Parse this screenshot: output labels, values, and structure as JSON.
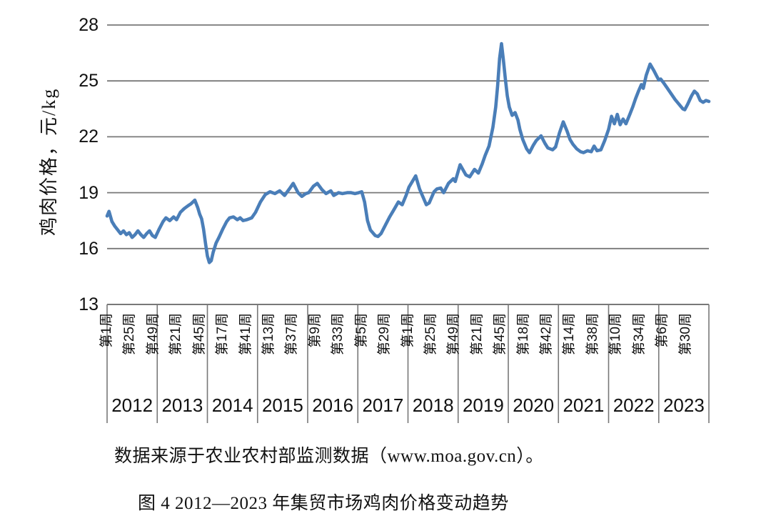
{
  "figure": {
    "source_note": "数据来源于农业农村部监测数据（www.moa.gov.cn）。",
    "caption": "图 4 2012—2023 年集贸市场鸡肉价格变动趋势"
  },
  "chart_data": {
    "type": "line",
    "title": "图 4 2012—2023 年集贸市场鸡肉价格变动趋势",
    "source_note": "数据来源于农业农村部监测数据（www.moa.gov.cn）。",
    "ylabel": "鸡肉价格，元/kg",
    "y_unit": "元/kg",
    "ylim": [
      13,
      28
    ],
    "y_ticks": [
      28,
      25,
      22,
      19,
      16,
      13
    ],
    "grid": "horizontal-only",
    "legend": "none",
    "line_color": "#4a7eb8",
    "grid_color": "#787878",
    "x_years": [
      "2012",
      "2013",
      "2014",
      "2015",
      "2016",
      "2017",
      "2018",
      "2019",
      "2020",
      "2021",
      "2022",
      "2023"
    ],
    "weeks_per_year": 52,
    "total_weeks": 624,
    "x_tick_interval_weeks": 24,
    "x_tick_week_labels": [
      "第1周",
      "第25周",
      "第49周",
      "第21周",
      "第45周",
      "第17周",
      "第41周",
      "第13周",
      "第37周",
      "第9周",
      "第33周",
      "第5周",
      "第29周",
      "第1周",
      "第25周",
      "第49周",
      "第21周",
      "第45周",
      "第18周",
      "第42周",
      "第14周",
      "第38周",
      "第10周",
      "第34周",
      "第6周",
      "第30周"
    ],
    "series": [
      {
        "unit": "元/kg",
        "points_week_value": [
          [
            0,
            17.75
          ],
          [
            2,
            18.0
          ],
          [
            5,
            17.45
          ],
          [
            8,
            17.2
          ],
          [
            11,
            17.0
          ],
          [
            14,
            16.8
          ],
          [
            17,
            16.95
          ],
          [
            20,
            16.75
          ],
          [
            23,
            16.85
          ],
          [
            26,
            16.6
          ],
          [
            29,
            16.75
          ],
          [
            32,
            16.95
          ],
          [
            35,
            16.75
          ],
          [
            38,
            16.6
          ],
          [
            41,
            16.8
          ],
          [
            44,
            16.95
          ],
          [
            47,
            16.7
          ],
          [
            50,
            16.6
          ],
          [
            54,
            17.05
          ],
          [
            58,
            17.45
          ],
          [
            61,
            17.65
          ],
          [
            65,
            17.5
          ],
          [
            69,
            17.7
          ],
          [
            72,
            17.55
          ],
          [
            76,
            17.95
          ],
          [
            80,
            18.15
          ],
          [
            84,
            18.3
          ],
          [
            87,
            18.4
          ],
          [
            91,
            18.6
          ],
          [
            94,
            18.2
          ],
          [
            96,
            17.85
          ],
          [
            98,
            17.6
          ],
          [
            100,
            17.05
          ],
          [
            102,
            16.3
          ],
          [
            104,
            15.6
          ],
          [
            106,
            15.25
          ],
          [
            108,
            15.35
          ],
          [
            110,
            15.8
          ],
          [
            113,
            16.3
          ],
          [
            116,
            16.6
          ],
          [
            120,
            17.05
          ],
          [
            124,
            17.45
          ],
          [
            127,
            17.65
          ],
          [
            131,
            17.7
          ],
          [
            135,
            17.55
          ],
          [
            138,
            17.65
          ],
          [
            141,
            17.5
          ],
          [
            145,
            17.55
          ],
          [
            150,
            17.65
          ],
          [
            154,
            17.95
          ],
          [
            159,
            18.5
          ],
          [
            164,
            18.9
          ],
          [
            169,
            19.05
          ],
          [
            174,
            18.95
          ],
          [
            179,
            19.1
          ],
          [
            184,
            18.85
          ],
          [
            189,
            19.2
          ],
          [
            193,
            19.5
          ],
          [
            198,
            19.0
          ],
          [
            202,
            18.8
          ],
          [
            206,
            18.95
          ],
          [
            209,
            19.0
          ],
          [
            214,
            19.35
          ],
          [
            218,
            19.5
          ],
          [
            223,
            19.15
          ],
          [
            227,
            18.95
          ],
          [
            232,
            19.1
          ],
          [
            235,
            18.85
          ],
          [
            240,
            19.0
          ],
          [
            244,
            18.95
          ],
          [
            249,
            19.0
          ],
          [
            253,
            19.0
          ],
          [
            257,
            18.95
          ],
          [
            261,
            19.0
          ],
          [
            264,
            19.05
          ],
          [
            267,
            18.5
          ],
          [
            270,
            17.5
          ],
          [
            273,
            17.0
          ],
          [
            278,
            16.7
          ],
          [
            281,
            16.65
          ],
          [
            284,
            16.8
          ],
          [
            289,
            17.3
          ],
          [
            293,
            17.7
          ],
          [
            297,
            18.05
          ],
          [
            302,
            18.5
          ],
          [
            306,
            18.35
          ],
          [
            310,
            18.85
          ],
          [
            313,
            19.3
          ],
          [
            320,
            19.9
          ],
          [
            324,
            19.2
          ],
          [
            331,
            18.35
          ],
          [
            334,
            18.45
          ],
          [
            339,
            19.05
          ],
          [
            342,
            19.2
          ],
          [
            346,
            19.25
          ],
          [
            349,
            19.0
          ],
          [
            354,
            19.5
          ],
          [
            359,
            19.75
          ],
          [
            361,
            19.6
          ],
          [
            366,
            20.5
          ],
          [
            372,
            19.95
          ],
          [
            376,
            19.85
          ],
          [
            381,
            20.25
          ],
          [
            385,
            20.05
          ],
          [
            389,
            20.55
          ],
          [
            392,
            21.0
          ],
          [
            396,
            21.5
          ],
          [
            400,
            22.5
          ],
          [
            403,
            23.6
          ],
          [
            405,
            24.75
          ],
          [
            407,
            26.2
          ],
          [
            409,
            27.0
          ],
          [
            411,
            26.1
          ],
          [
            413,
            25.1
          ],
          [
            415,
            24.2
          ],
          [
            417,
            23.6
          ],
          [
            420,
            23.15
          ],
          [
            423,
            23.3
          ],
          [
            426,
            22.9
          ],
          [
            428,
            22.4
          ],
          [
            431,
            21.85
          ],
          [
            435,
            21.35
          ],
          [
            438,
            21.15
          ],
          [
            442,
            21.55
          ],
          [
            445,
            21.8
          ],
          [
            450,
            22.05
          ],
          [
            454,
            21.65
          ],
          [
            457,
            21.4
          ],
          [
            462,
            21.3
          ],
          [
            465,
            21.45
          ],
          [
            469,
            22.2
          ],
          [
            473,
            22.8
          ],
          [
            477,
            22.3
          ],
          [
            480,
            21.85
          ],
          [
            483,
            21.6
          ],
          [
            487,
            21.35
          ],
          [
            491,
            21.2
          ],
          [
            494,
            21.15
          ],
          [
            498,
            21.25
          ],
          [
            502,
            21.2
          ],
          [
            505,
            21.5
          ],
          [
            508,
            21.25
          ],
          [
            512,
            21.3
          ],
          [
            516,
            21.8
          ],
          [
            520,
            22.4
          ],
          [
            523,
            23.1
          ],
          [
            526,
            22.7
          ],
          [
            529,
            23.2
          ],
          [
            532,
            22.65
          ],
          [
            535,
            22.95
          ],
          [
            538,
            22.7
          ],
          [
            542,
            23.2
          ],
          [
            545,
            23.6
          ],
          [
            548,
            24.05
          ],
          [
            551,
            24.45
          ],
          [
            554,
            24.8
          ],
          [
            556,
            24.6
          ],
          [
            559,
            25.3
          ],
          [
            563,
            25.9
          ],
          [
            567,
            25.55
          ],
          [
            570,
            25.25
          ],
          [
            572,
            25.05
          ],
          [
            574,
            25.1
          ],
          [
            577,
            24.9
          ],
          [
            581,
            24.6
          ],
          [
            585,
            24.3
          ],
          [
            589,
            24.0
          ],
          [
            593,
            23.75
          ],
          [
            597,
            23.5
          ],
          [
            599,
            23.45
          ],
          [
            602,
            23.75
          ],
          [
            606,
            24.2
          ],
          [
            609,
            24.45
          ],
          [
            612,
            24.3
          ],
          [
            615,
            23.95
          ],
          [
            618,
            23.85
          ],
          [
            621,
            23.95
          ],
          [
            624,
            23.9
          ]
        ]
      }
    ]
  },
  "layout_values": {
    "note": ""
  }
}
